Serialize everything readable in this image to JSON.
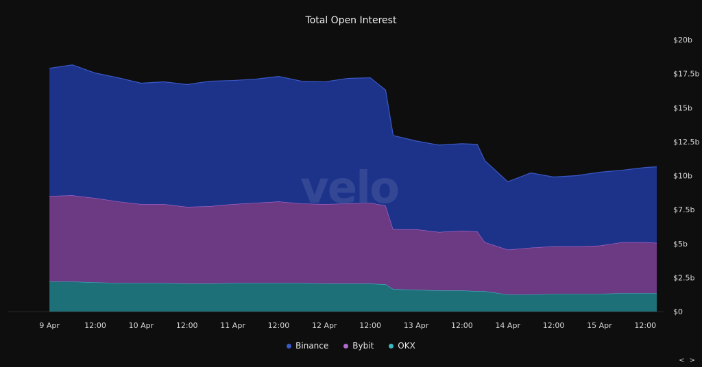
{
  "chart_data": {
    "type": "area",
    "stacked": true,
    "title": "Total Open Interest",
    "x_ticks": [
      "9 Apr",
      "12:00",
      "10 Apr",
      "12:00",
      "11 Apr",
      "12:00",
      "12 Apr",
      "12:00",
      "13 Apr",
      "12:00",
      "14 Apr",
      "12:00",
      "15 Apr",
      "12:00"
    ],
    "y_ticks": [
      "$0",
      "$2.5b",
      "$5b",
      "$7.5b",
      "$10b",
      "$12.5b",
      "$15b",
      "$17.5b",
      "$20b"
    ],
    "ylim": [
      0,
      20
    ],
    "y_unit": "$b",
    "x": [
      "9 Apr 00:00",
      "9 Apr 06:00",
      "9 Apr 12:00",
      "9 Apr 18:00",
      "10 Apr 00:00",
      "10 Apr 06:00",
      "10 Apr 12:00",
      "10 Apr 18:00",
      "11 Apr 00:00",
      "11 Apr 06:00",
      "11 Apr 12:00",
      "11 Apr 18:00",
      "12 Apr 00:00",
      "12 Apr 06:00",
      "12 Apr 12:00",
      "12 Apr 16:00",
      "12 Apr 18:00",
      "13 Apr 00:00",
      "13 Apr 06:00",
      "13 Apr 12:00",
      "13 Apr 16:00",
      "13 Apr 18:00",
      "14 Apr 00:00",
      "14 Apr 06:00",
      "14 Apr 12:00",
      "14 Apr 18:00",
      "15 Apr 00:00",
      "15 Apr 06:00",
      "15 Apr 12:00",
      "15 Apr 15:00"
    ],
    "series": [
      {
        "name": "OKX",
        "color": "#1d6f78",
        "stroke": "#3fb6c0",
        "values": [
          2.2,
          2.2,
          2.15,
          2.1,
          2.1,
          2.1,
          2.05,
          2.05,
          2.1,
          2.1,
          2.1,
          2.1,
          2.05,
          2.05,
          2.05,
          2.0,
          1.65,
          1.6,
          1.55,
          1.55,
          1.5,
          1.5,
          1.25,
          1.25,
          1.3,
          1.3,
          1.3,
          1.35,
          1.35,
          1.35
        ]
      },
      {
        "name": "Bybit",
        "color": "#6c3a82",
        "stroke": "#b06ad0",
        "values": [
          6.3,
          6.35,
          6.2,
          6.0,
          5.8,
          5.8,
          5.65,
          5.7,
          5.8,
          5.9,
          6.0,
          5.85,
          5.85,
          5.9,
          5.95,
          5.8,
          4.4,
          4.45,
          4.3,
          4.4,
          4.4,
          3.6,
          3.3,
          3.45,
          3.5,
          3.5,
          3.55,
          3.75,
          3.75,
          3.7
        ]
      },
      {
        "name": "Binance",
        "color": "#1c3389",
        "stroke": "#3b58c8",
        "values": [
          9.4,
          9.6,
          9.2,
          9.1,
          8.9,
          9.0,
          9.0,
          9.2,
          9.1,
          9.1,
          9.2,
          9.0,
          9.0,
          9.2,
          9.2,
          8.5,
          6.9,
          6.5,
          6.4,
          6.4,
          6.4,
          6.0,
          5.0,
          5.5,
          5.1,
          5.2,
          5.4,
          5.3,
          5.5,
          5.6
        ]
      }
    ],
    "legend_position": "bottom",
    "grid": false
  },
  "legend": {
    "items": [
      {
        "label": "Binance",
        "color": "#3b58c8"
      },
      {
        "label": "Bybit",
        "color": "#b06ad0"
      },
      {
        "label": "OKX",
        "color": "#3fb6c0"
      }
    ]
  },
  "watermark": "velo",
  "nav": "< >"
}
